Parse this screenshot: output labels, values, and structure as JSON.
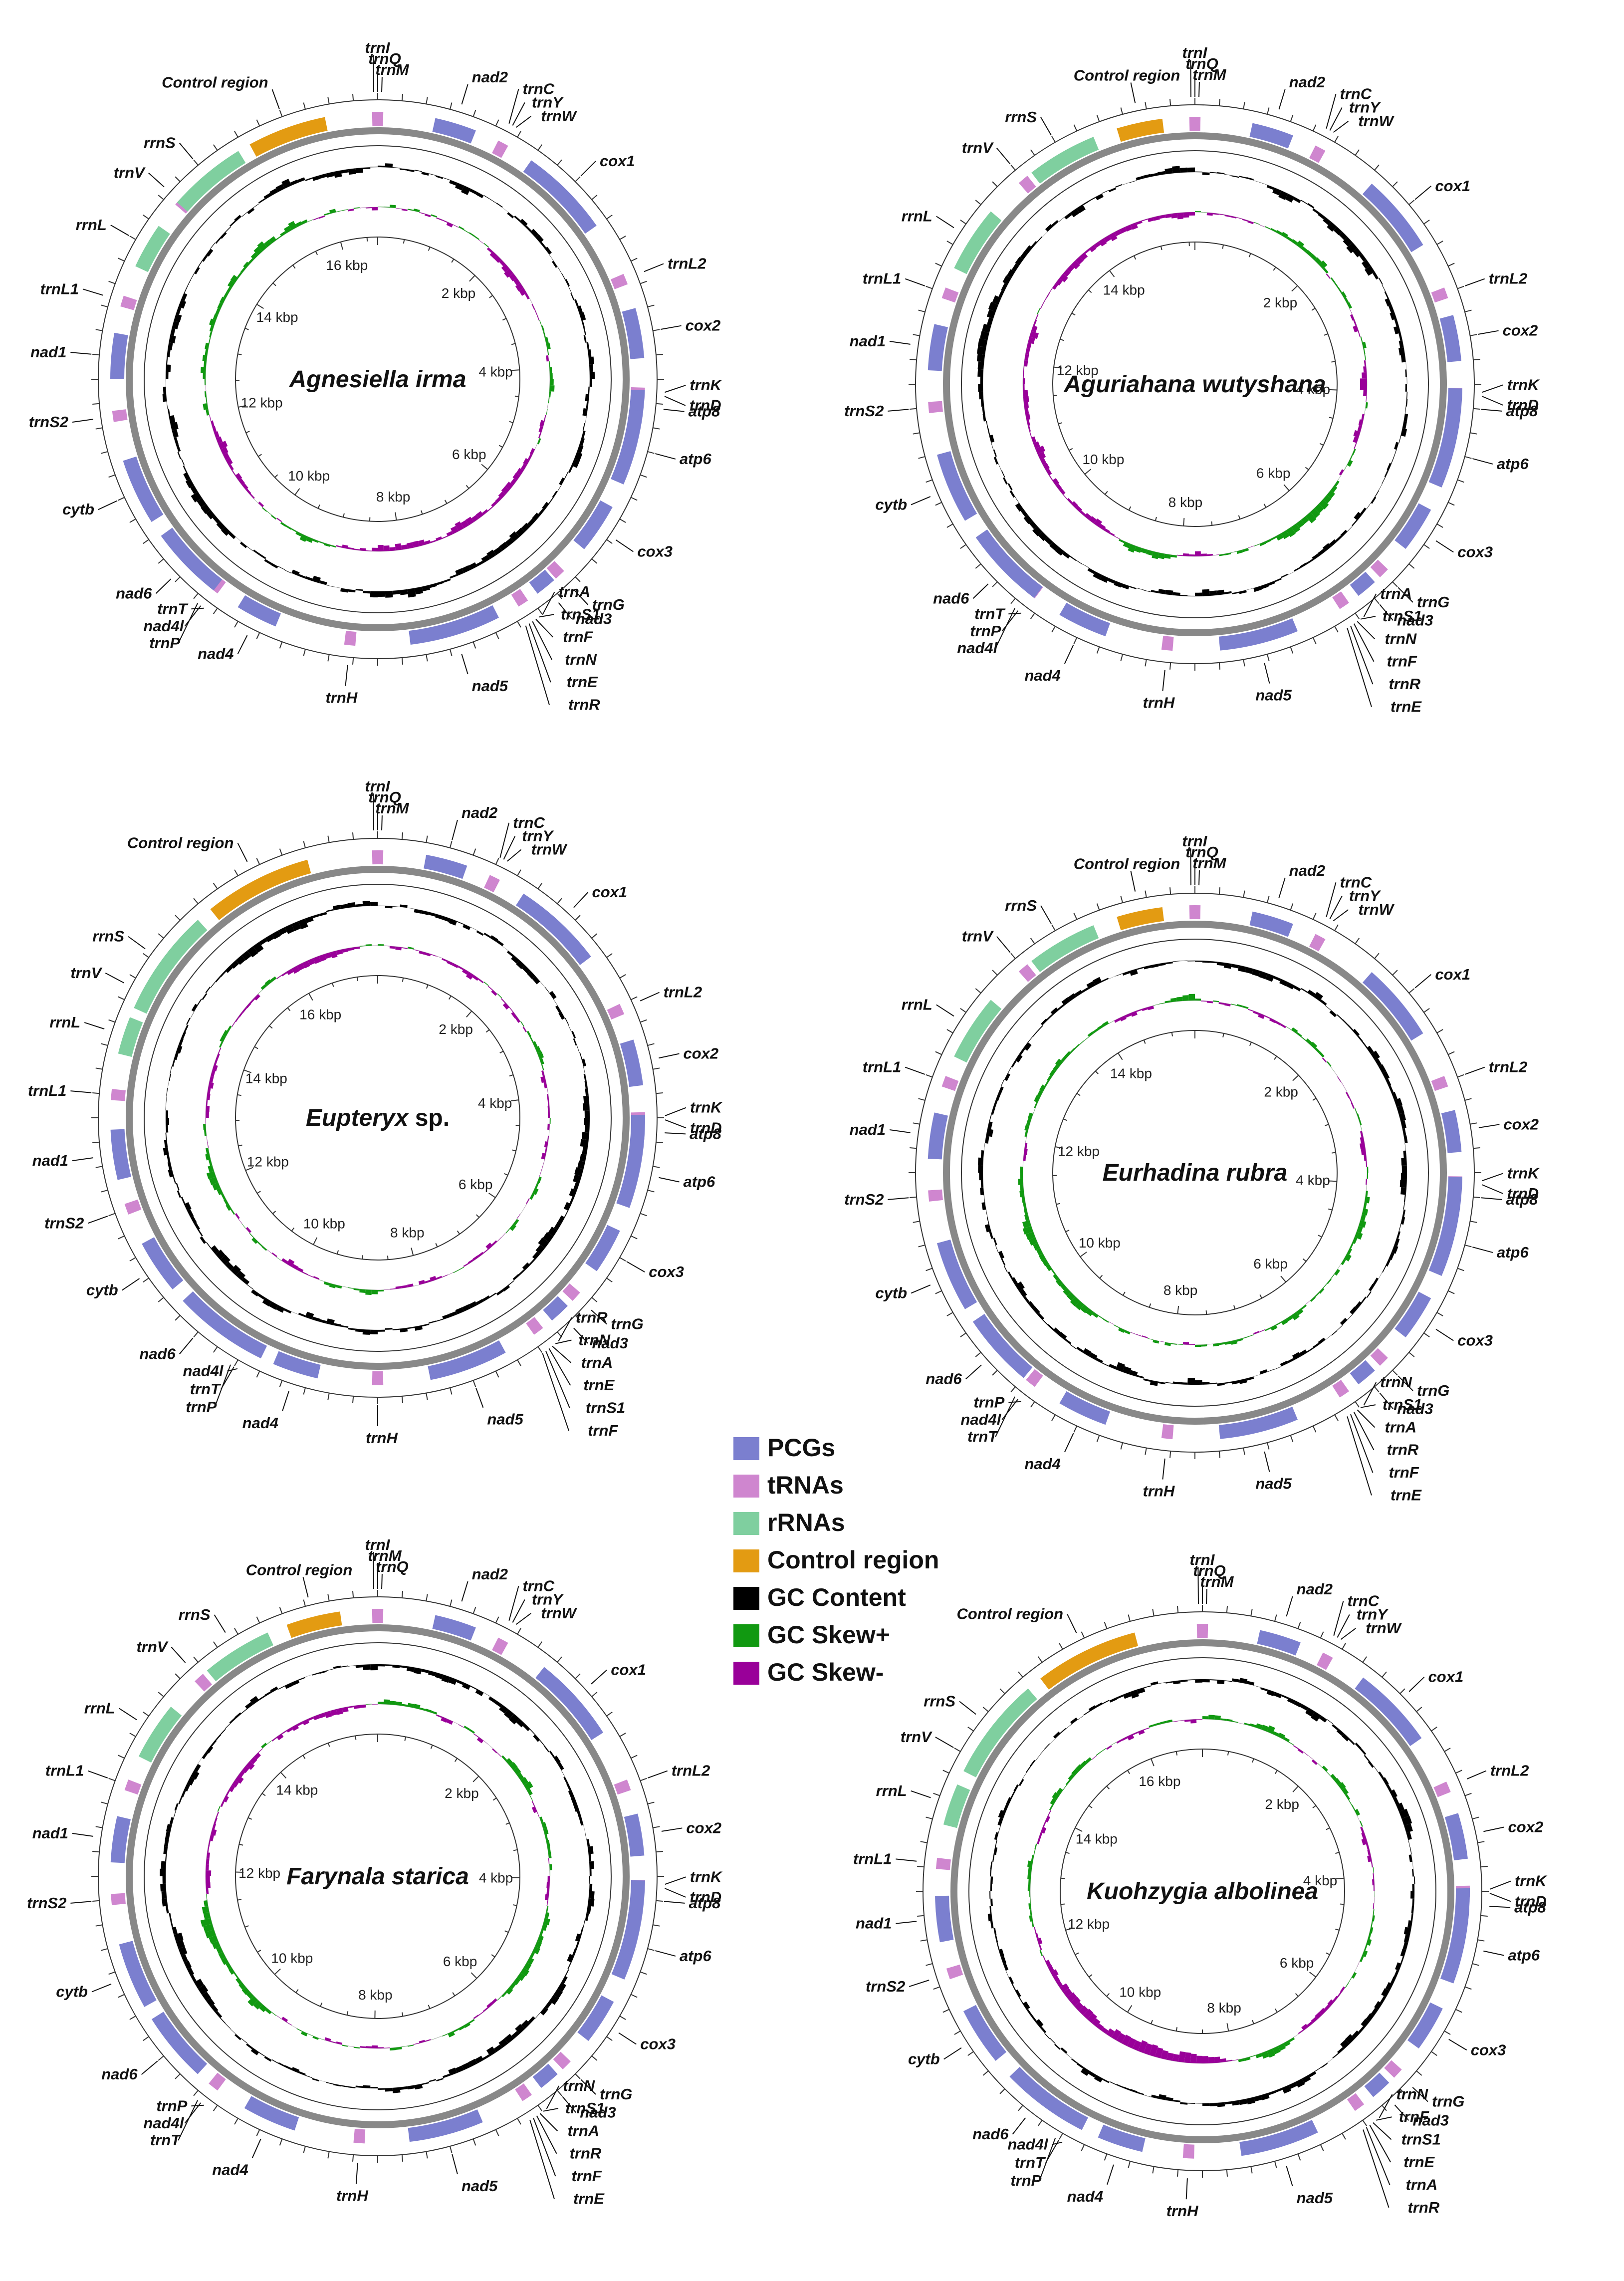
{
  "legend": {
    "items": [
      {
        "key": "pcg",
        "label": "PCGs",
        "color": "#7b7fcf"
      },
      {
        "key": "trna",
        "label": "tRNAs",
        "color": "#cf86cf"
      },
      {
        "key": "rrna",
        "label": "rRNAs",
        "color": "#7fcf9f"
      },
      {
        "key": "control",
        "label": "Control region",
        "color": "#e39b12"
      },
      {
        "key": "gc",
        "label": "GC Content",
        "color": "#000000"
      },
      {
        "key": "skewpos",
        "label": "GC Skew+",
        "color": "#119911"
      },
      {
        "key": "skewneg",
        "label": "GC Skew-",
        "color": "#990099"
      }
    ]
  },
  "maps": [
    {
      "title": "Agnesiella irma",
      "title_suffix": "",
      "genome_kbp": 16.7,
      "kbp_labels": [
        "2 kbp",
        "4 kbp",
        "6 kbp",
        "8 kbp",
        "10 kbp",
        "12 kbp",
        "14 kbp",
        "16 kbp"
      ],
      "labels": [
        {
          "text": "trnI",
          "angle": 0
        },
        {
          "text": "trnQ",
          "angle": 0
        },
        {
          "text": "trnM",
          "angle": 0
        },
        {
          "text": "nad2",
          "angle": 17
        },
        {
          "text": "trnC",
          "angle": 28
        },
        {
          "text": "trnY",
          "angle": 28
        },
        {
          "text": "trnW",
          "angle": 28
        },
        {
          "text": "cox1",
          "angle": 45
        },
        {
          "text": "trnL2",
          "angle": 68
        },
        {
          "text": "cox2",
          "angle": 80
        },
        {
          "text": "trnK",
          "angle": 93
        },
        {
          "text": "trnD",
          "angle": 93
        },
        {
          "text": "atp8",
          "angle": 96
        },
        {
          "text": "atp6",
          "angle": 105
        },
        {
          "text": "cox3",
          "angle": 124
        },
        {
          "text": "trnG",
          "angle": 137
        },
        {
          "text": "nad3",
          "angle": 141
        },
        {
          "text": "trnA",
          "angle": 147
        },
        {
          "text": "trnS1",
          "angle": 147
        },
        {
          "text": "trnF",
          "angle": 147
        },
        {
          "text": "trnN",
          "angle": 147
        },
        {
          "text": "trnE",
          "angle": 147
        },
        {
          "text": "trnR",
          "angle": 147
        },
        {
          "text": "nad5",
          "angle": 163
        },
        {
          "text": "trnH",
          "angle": 186
        },
        {
          "text": "nad4",
          "angle": 207
        },
        {
          "text": "trnT",
          "angle": 218
        },
        {
          "text": "nad4l",
          "angle": 218
        },
        {
          "text": "trnP",
          "angle": 218
        },
        {
          "text": "nad6",
          "angle": 226
        },
        {
          "text": "cytb",
          "angle": 245
        },
        {
          "text": "trnS2",
          "angle": 262
        },
        {
          "text": "nad1",
          "angle": 275
        },
        {
          "text": "trnL1",
          "angle": 287
        },
        {
          "text": "rrnL",
          "angle": 300
        },
        {
          "text": "trnV",
          "angle": 312
        },
        {
          "text": "rrnS",
          "angle": 320
        },
        {
          "text": "Control region",
          "angle": 340
        }
      ]
    },
    {
      "title": "Aguriahana wutyshana",
      "title_suffix": "",
      "genome_kbp": 15.6,
      "kbp_labels": [
        "2 kbp",
        "4 kbp",
        "6 kbp",
        "8 kbp",
        "10 kbp",
        "12 kbp",
        "14 kbp"
      ],
      "labels": [
        {
          "text": "trnI",
          "angle": 0
        },
        {
          "text": "trnQ",
          "angle": 0
        },
        {
          "text": "trnM",
          "angle": 0
        },
        {
          "text": "nad2",
          "angle": 17
        },
        {
          "text": "trnC",
          "angle": 28
        },
        {
          "text": "trnY",
          "angle": 28
        },
        {
          "text": "trnW",
          "angle": 28
        },
        {
          "text": "cox1",
          "angle": 50
        },
        {
          "text": "trnL2",
          "angle": 70
        },
        {
          "text": "cox2",
          "angle": 80
        },
        {
          "text": "trnK",
          "angle": 92
        },
        {
          "text": "trnD",
          "angle": 92
        },
        {
          "text": "atp8",
          "angle": 95
        },
        {
          "text": "atp6",
          "angle": 105
        },
        {
          "text": "cox3",
          "angle": 123
        },
        {
          "text": "trnG",
          "angle": 135
        },
        {
          "text": "nad3",
          "angle": 140
        },
        {
          "text": "trnA",
          "angle": 146
        },
        {
          "text": "trnS1",
          "angle": 146
        },
        {
          "text": "trnN",
          "angle": 146
        },
        {
          "text": "trnF",
          "angle": 146
        },
        {
          "text": "trnR",
          "angle": 146
        },
        {
          "text": "trnE",
          "angle": 146
        },
        {
          "text": "nad5",
          "angle": 166
        },
        {
          "text": "trnH",
          "angle": 186
        },
        {
          "text": "nad4",
          "angle": 205
        },
        {
          "text": "trnT",
          "angle": 218
        },
        {
          "text": "trnP",
          "angle": 218
        },
        {
          "text": "nad4l",
          "angle": 218
        },
        {
          "text": "nad6",
          "angle": 226
        },
        {
          "text": "cytb",
          "angle": 247
        },
        {
          "text": "trnS2",
          "angle": 265
        },
        {
          "text": "nad1",
          "angle": 278
        },
        {
          "text": "trnL1",
          "angle": 290
        },
        {
          "text": "rrnL",
          "angle": 303
        },
        {
          "text": "trnV",
          "angle": 320
        },
        {
          "text": "rrnS",
          "angle": 330
        },
        {
          "text": "Control region",
          "angle": 348
        }
      ]
    },
    {
      "title": "Eupteryx",
      "title_suffix": " sp.",
      "genome_kbp": 17.4,
      "kbp_labels": [
        "2 kbp",
        "4 kbp",
        "6 kbp",
        "8 kbp",
        "10 kbp",
        "12 kbp",
        "14 kbp",
        "16 kbp"
      ],
      "labels": [
        {
          "text": "trnI",
          "angle": 0
        },
        {
          "text": "trnQ",
          "angle": 0
        },
        {
          "text": "trnM",
          "angle": 0
        },
        {
          "text": "nad2",
          "angle": 15
        },
        {
          "text": "trnC",
          "angle": 26
        },
        {
          "text": "trnY",
          "angle": 26
        },
        {
          "text": "trnW",
          "angle": 26
        },
        {
          "text": "cox1",
          "angle": 43
        },
        {
          "text": "trnL2",
          "angle": 66
        },
        {
          "text": "cox2",
          "angle": 78
        },
        {
          "text": "trnK",
          "angle": 90
        },
        {
          "text": "trnD",
          "angle": 90
        },
        {
          "text": "atp8",
          "angle": 93
        },
        {
          "text": "atp6",
          "angle": 102
        },
        {
          "text": "cox3",
          "angle": 120
        },
        {
          "text": "trnG",
          "angle": 132
        },
        {
          "text": "nad3",
          "angle": 137
        },
        {
          "text": "trnR",
          "angle": 143
        },
        {
          "text": "trnN",
          "angle": 143
        },
        {
          "text": "trnA",
          "angle": 143
        },
        {
          "text": "trnE",
          "angle": 143
        },
        {
          "text": "trnS1",
          "angle": 143
        },
        {
          "text": "trnF",
          "angle": 143
        },
        {
          "text": "nad5",
          "angle": 160
        },
        {
          "text": "trnH",
          "angle": 180
        },
        {
          "text": "nad4",
          "angle": 198
        },
        {
          "text": "nad4l",
          "angle": 210
        },
        {
          "text": "trnT",
          "angle": 210
        },
        {
          "text": "trnP",
          "angle": 210
        },
        {
          "text": "nad6",
          "angle": 220
        },
        {
          "text": "cytb",
          "angle": 236
        },
        {
          "text": "trnS2",
          "angle": 250
        },
        {
          "text": "nad1",
          "angle": 262
        },
        {
          "text": "trnL1",
          "angle": 275
        },
        {
          "text": "rrnL",
          "angle": 288
        },
        {
          "text": "trnV",
          "angle": 298
        },
        {
          "text": "rrnS",
          "angle": 306
        },
        {
          "text": "Control region",
          "angle": 333
        }
      ]
    },
    {
      "title": "Eurhadina rubra",
      "title_suffix": "",
      "genome_kbp": 15.4,
      "kbp_labels": [
        "2 kbp",
        "4 kbp",
        "6 kbp",
        "8 kbp",
        "10 kbp",
        "12 kbp",
        "14 kbp"
      ],
      "labels": [
        {
          "text": "trnI",
          "angle": 0
        },
        {
          "text": "trnQ",
          "angle": 0
        },
        {
          "text": "trnM",
          "angle": 0
        },
        {
          "text": "nad2",
          "angle": 17
        },
        {
          "text": "trnC",
          "angle": 28
        },
        {
          "text": "trnY",
          "angle": 28
        },
        {
          "text": "trnW",
          "angle": 28
        },
        {
          "text": "cox1",
          "angle": 50
        },
        {
          "text": "trnL2",
          "angle": 70
        },
        {
          "text": "cox2",
          "angle": 81
        },
        {
          "text": "trnK",
          "angle": 92
        },
        {
          "text": "trnD",
          "angle": 92
        },
        {
          "text": "atp8",
          "angle": 95
        },
        {
          "text": "atp6",
          "angle": 105
        },
        {
          "text": "cox3",
          "angle": 123
        },
        {
          "text": "trnG",
          "angle": 135
        },
        {
          "text": "nad3",
          "angle": 140
        },
        {
          "text": "trnN",
          "angle": 146
        },
        {
          "text": "trnS1",
          "angle": 146
        },
        {
          "text": "trnA",
          "angle": 146
        },
        {
          "text": "trnR",
          "angle": 146
        },
        {
          "text": "trnF",
          "angle": 146
        },
        {
          "text": "trnE",
          "angle": 146
        },
        {
          "text": "nad5",
          "angle": 166
        },
        {
          "text": "trnH",
          "angle": 186
        },
        {
          "text": "nad4",
          "angle": 205
        },
        {
          "text": "trnP",
          "angle": 218
        },
        {
          "text": "nad4l",
          "angle": 218
        },
        {
          "text": "trnT",
          "angle": 218
        },
        {
          "text": "nad6",
          "angle": 228
        },
        {
          "text": "cytb",
          "angle": 247
        },
        {
          "text": "trnS2",
          "angle": 265
        },
        {
          "text": "nad1",
          "angle": 278
        },
        {
          "text": "trnL1",
          "angle": 290
        },
        {
          "text": "rrnL",
          "angle": 303
        },
        {
          "text": "trnV",
          "angle": 320
        },
        {
          "text": "rrnS",
          "angle": 330
        },
        {
          "text": "Control region",
          "angle": 348
        }
      ]
    },
    {
      "title": "Farynala starica",
      "title_suffix": "",
      "genome_kbp": 15.9,
      "kbp_labels": [
        "2 kbp",
        "4 kbp",
        "6 kbp",
        "8 kbp",
        "10 kbp",
        "12 kbp",
        "14 kbp"
      ],
      "labels": [
        {
          "text": "trnI",
          "angle": 0
        },
        {
          "text": "trnM",
          "angle": 0
        },
        {
          "text": "trnQ",
          "angle": 0
        },
        {
          "text": "nad2",
          "angle": 17
        },
        {
          "text": "trnC",
          "angle": 28
        },
        {
          "text": "trnY",
          "angle": 28
        },
        {
          "text": "trnW",
          "angle": 28
        },
        {
          "text": "cox1",
          "angle": 48
        },
        {
          "text": "trnL2",
          "angle": 70
        },
        {
          "text": "cox2",
          "angle": 81
        },
        {
          "text": "trnK",
          "angle": 92
        },
        {
          "text": "trnD",
          "angle": 92
        },
        {
          "text": "atp8",
          "angle": 95
        },
        {
          "text": "atp6",
          "angle": 105
        },
        {
          "text": "cox3",
          "angle": 123
        },
        {
          "text": "trnG",
          "angle": 135
        },
        {
          "text": "nad3",
          "angle": 140
        },
        {
          "text": "trnN",
          "angle": 146
        },
        {
          "text": "trnS1",
          "angle": 146
        },
        {
          "text": "trnA",
          "angle": 146
        },
        {
          "text": "trnR",
          "angle": 146
        },
        {
          "text": "trnF",
          "angle": 146
        },
        {
          "text": "trnE",
          "angle": 146
        },
        {
          "text": "nad5",
          "angle": 165
        },
        {
          "text": "trnH",
          "angle": 184
        },
        {
          "text": "nad4",
          "angle": 204
        },
        {
          "text": "trnP",
          "angle": 218
        },
        {
          "text": "nad4l",
          "angle": 218
        },
        {
          "text": "trnT",
          "angle": 218
        },
        {
          "text": "nad6",
          "angle": 230
        },
        {
          "text": "cytb",
          "angle": 248
        },
        {
          "text": "trnS2",
          "angle": 265
        },
        {
          "text": "nad1",
          "angle": 278
        },
        {
          "text": "trnL1",
          "angle": 290
        },
        {
          "text": "rrnL",
          "angle": 303
        },
        {
          "text": "trnV",
          "angle": 318
        },
        {
          "text": "rrnS",
          "angle": 328
        },
        {
          "text": "Control region",
          "angle": 346
        }
      ]
    },
    {
      "title": "Kuohzygia albolinea",
      "title_suffix": "",
      "genome_kbp": 17.0,
      "kbp_labels": [
        "2 kbp",
        "4 kbp",
        "6 kbp",
        "8 kbp",
        "10 kbp",
        "12 kbp",
        "14 kbp",
        "16 kbp"
      ],
      "labels": [
        {
          "text": "trnI",
          "angle": 0
        },
        {
          "text": "trnQ",
          "angle": 0
        },
        {
          "text": "trnM",
          "angle": 0
        },
        {
          "text": "nad2",
          "angle": 17
        },
        {
          "text": "trnC",
          "angle": 28
        },
        {
          "text": "trnY",
          "angle": 28
        },
        {
          "text": "trnW",
          "angle": 28
        },
        {
          "text": "cox1",
          "angle": 46
        },
        {
          "text": "trnL2",
          "angle": 67
        },
        {
          "text": "cox2",
          "angle": 78
        },
        {
          "text": "trnK",
          "angle": 90
        },
        {
          "text": "trnD",
          "angle": 90
        },
        {
          "text": "atp8",
          "angle": 93
        },
        {
          "text": "atp6",
          "angle": 102
        },
        {
          "text": "cox3",
          "angle": 121
        },
        {
          "text": "trnG",
          "angle": 133
        },
        {
          "text": "nad3",
          "angle": 138
        },
        {
          "text": "trnN",
          "angle": 144
        },
        {
          "text": "trnF",
          "angle": 144
        },
        {
          "text": "trnS1",
          "angle": 144
        },
        {
          "text": "trnE",
          "angle": 144
        },
        {
          "text": "trnA",
          "angle": 144
        },
        {
          "text": "trnR",
          "angle": 144
        },
        {
          "text": "nad5",
          "angle": 163
        },
        {
          "text": "trnH",
          "angle": 183
        },
        {
          "text": "nad4",
          "angle": 198
        },
        {
          "text": "nad4l",
          "angle": 210
        },
        {
          "text": "trnT",
          "angle": 210
        },
        {
          "text": "trnP",
          "angle": 210
        },
        {
          "text": "nad6",
          "angle": 218
        },
        {
          "text": "cytb",
          "angle": 237
        },
        {
          "text": "trnS2",
          "angle": 252
        },
        {
          "text": "nad1",
          "angle": 264
        },
        {
          "text": "trnL1",
          "angle": 276
        },
        {
          "text": "rrnL",
          "angle": 289
        },
        {
          "text": "trnV",
          "angle": 300
        },
        {
          "text": "rrnS",
          "angle": 308
        },
        {
          "text": "Control region",
          "angle": 334
        }
      ]
    }
  ]
}
